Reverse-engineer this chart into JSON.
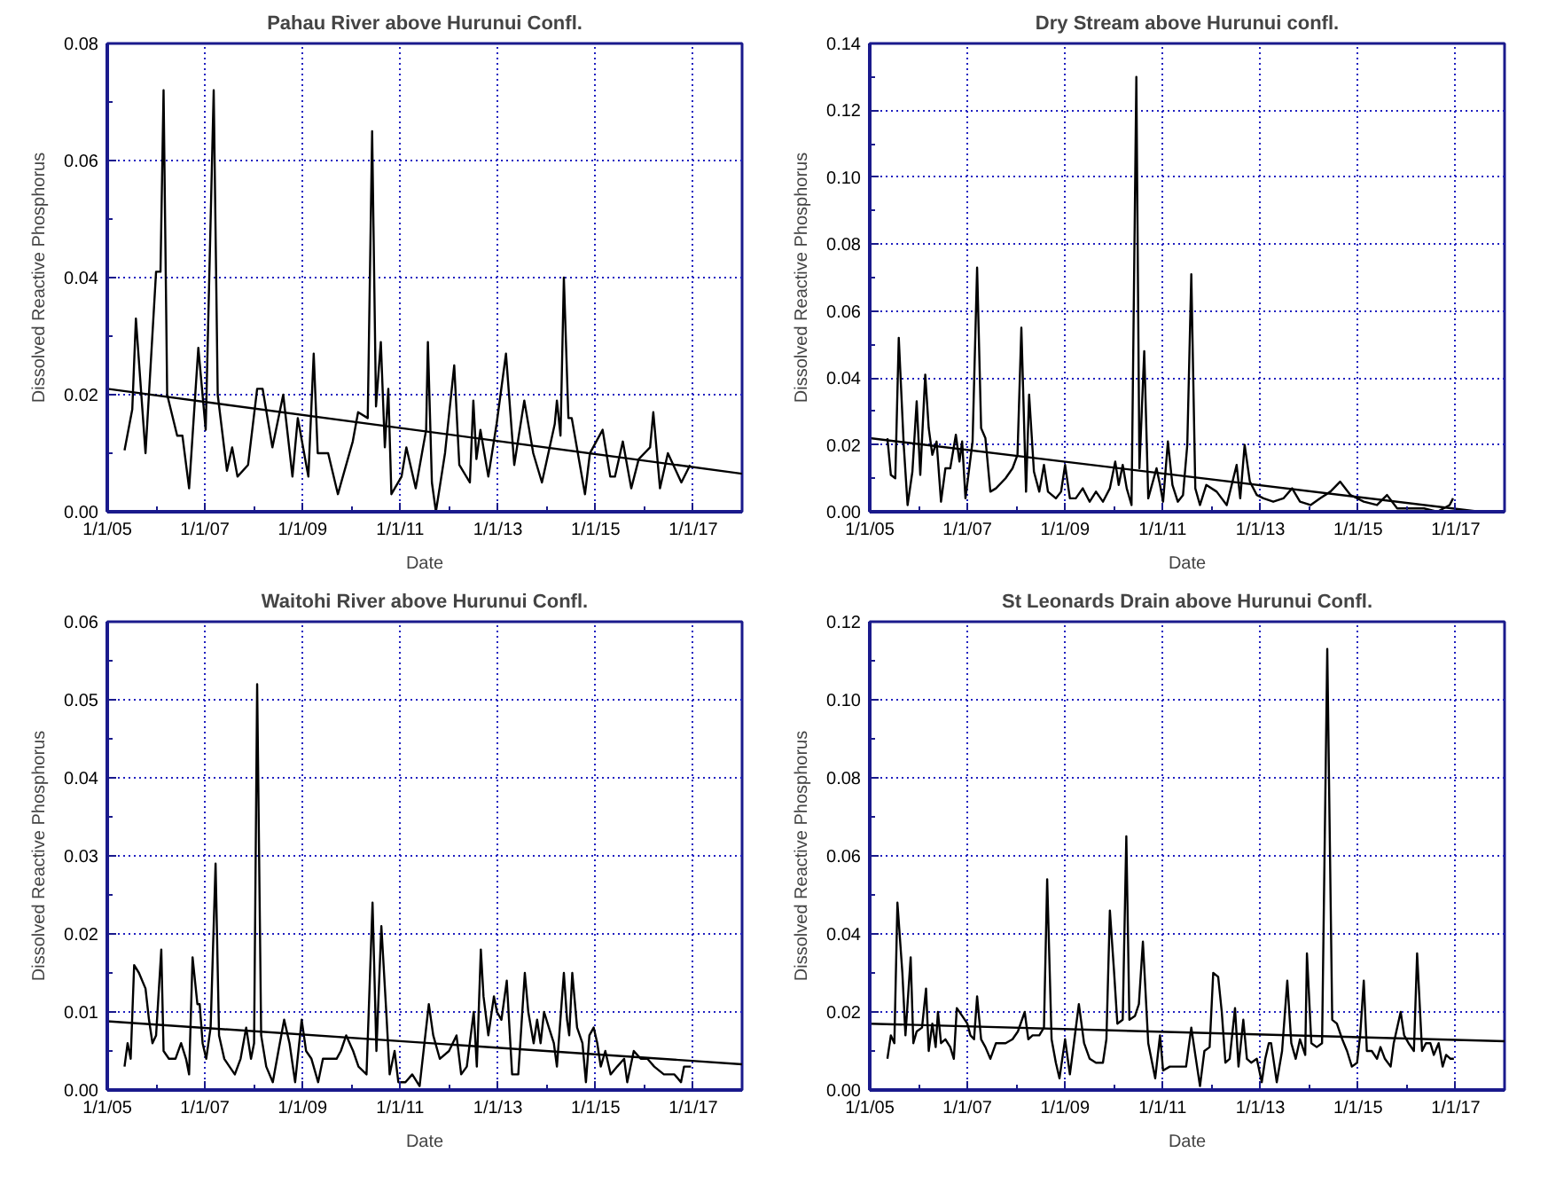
{
  "chart_data": [
    {
      "type": "line",
      "title": "Pahau River above Hurunui Confl.",
      "xlabel": "Date",
      "ylabel": "Dissolved Reactive Phosphorus",
      "xlim": [
        "2005-01-01",
        "2018-01-01"
      ],
      "xticks": [
        {
          "value": "2005-01-01",
          "label": "1/1/05"
        },
        {
          "value": "2007-01-01",
          "label": "1/1/07"
        },
        {
          "value": "2009-01-01",
          "label": "1/1/09"
        },
        {
          "value": "2011-01-01",
          "label": "1/1/11"
        },
        {
          "value": "2013-01-01",
          "label": "1/1/13"
        },
        {
          "value": "2015-01-01",
          "label": "1/1/15"
        },
        {
          "value": "2017-01-01",
          "label": "1/1/17"
        }
      ],
      "ylim": [
        0,
        0.08
      ],
      "yticks": [
        {
          "value": 0,
          "label": "0.00"
        },
        {
          "value": 0.02,
          "label": "0.02"
        },
        {
          "value": 0.04,
          "label": "0.04"
        },
        {
          "value": 0.06,
          "label": "0.06"
        },
        {
          "value": 0.08,
          "label": "0.08"
        }
      ],
      "grid": true,
      "series": [
        {
          "color": "#000000",
          "x": [
            "2005-05-10",
            "2005-07-07",
            "2005-08-03",
            "2005-10-14",
            "2006-01-01",
            "2006-02-03",
            "2006-02-26",
            "2006-03-25",
            "2006-06-08",
            "2006-07-17",
            "2006-09-05",
            "2006-11-13",
            "2007-01-07",
            "2007-03-08",
            "2007-04-07",
            "2007-06-15",
            "2007-07-24",
            "2007-09-02",
            "2007-11-20",
            "2008-01-27",
            "2008-03-08",
            "2008-05-20",
            "2008-08-09",
            "2008-10-17",
            "2008-11-26",
            "2009-02-13",
            "2009-03-25",
            "2009-04-24",
            "2009-07-11",
            "2009-09-22",
            "2010-01-11",
            "2010-02-20",
            "2010-05-03",
            "2010-06-05",
            "2010-07-04",
            "2010-08-09",
            "2010-09-08",
            "2010-10-04",
            "2010-10-27",
            "2011-01-11",
            "2011-02-16",
            "2011-04-27",
            "2011-07-14",
            "2011-07-27",
            "2011-08-26",
            "2011-09-25",
            "2011-12-02",
            "2012-02-09",
            "2012-03-18",
            "2012-06-05",
            "2012-07-01",
            "2012-07-24",
            "2012-08-23",
            "2012-10-21",
            "2012-12-22",
            "2013-03-02",
            "2013-05-03",
            "2013-07-17",
            "2013-09-22",
            "2013-11-26",
            "2014-03-02",
            "2014-03-18",
            "2014-04-14",
            "2014-05-09",
            "2014-06-12",
            "2014-07-07",
            "2014-10-14",
            "2014-11-20",
            "2015-02-23",
            "2015-04-21",
            "2015-05-26",
            "2015-07-24",
            "2015-09-25",
            "2015-11-20",
            "2016-02-13",
            "2016-03-08",
            "2016-04-27",
            "2016-06-25",
            "2016-10-04",
            "2016-12-08"
          ],
          "values": [
            0.0105,
            0.0175,
            0.033,
            0.01,
            0.041,
            0.041,
            0.072,
            0.02,
            0.013,
            0.013,
            0.004,
            0.028,
            0.014,
            0.072,
            0.02,
            0.007,
            0.011,
            0.006,
            0.008,
            0.021,
            0.021,
            0.011,
            0.02,
            0.006,
            0.016,
            0.006,
            0.027,
            0.01,
            0.01,
            0.003,
            0.012,
            0.017,
            0.016,
            0.065,
            0.018,
            0.029,
            0.011,
            0.021,
            0.003,
            0.006,
            0.011,
            0.004,
            0.014,
            0.029,
            0.005,
            0.0,
            0.01,
            0.025,
            0.008,
            0.005,
            0.019,
            0.009,
            0.014,
            0.006,
            0.015,
            0.027,
            0.008,
            0.019,
            0.01,
            0.005,
            0.015,
            0.019,
            0.013,
            0.04,
            0.016,
            0.016,
            0.003,
            0.01,
            0.014,
            0.006,
            0.006,
            0.012,
            0.004,
            0.009,
            0.011,
            0.017,
            0.004,
            0.01,
            0.005,
            0.008
          ]
        },
        {
          "type": "line",
          "color": "#000000",
          "x": [
            "2005-01-01",
            "2018-01-01"
          ],
          "values": [
            0.021,
            0.0065
          ]
        }
      ]
    },
    {
      "type": "line",
      "title": "Dry Stream above Hurunui confl.",
      "xlabel": "Date",
      "ylabel": "Dissolved Reactive Phosphorus",
      "xlim": [
        "2005-01-01",
        "2018-01-01"
      ],
      "xticks": [
        {
          "value": "2005-01-01",
          "label": "1/1/05"
        },
        {
          "value": "2007-01-01",
          "label": "1/1/07"
        },
        {
          "value": "2009-01-01",
          "label": "1/1/09"
        },
        {
          "value": "2011-01-01",
          "label": "1/1/11"
        },
        {
          "value": "2013-01-01",
          "label": "1/1/13"
        },
        {
          "value": "2015-01-01",
          "label": "1/1/15"
        },
        {
          "value": "2017-01-01",
          "label": "1/1/17"
        }
      ],
      "ylim": [
        0,
        0.14
      ],
      "yticks": [
        {
          "value": 0,
          "label": "0.00"
        },
        {
          "value": 0.02,
          "label": "0.02"
        },
        {
          "value": 0.04,
          "label": "0.04"
        },
        {
          "value": 0.06,
          "label": "0.06"
        },
        {
          "value": 0.08,
          "label": "0.08"
        },
        {
          "value": 0.1,
          "label": "0.10"
        },
        {
          "value": 0.12,
          "label": "0.12"
        },
        {
          "value": 0.14,
          "label": "0.14"
        }
      ],
      "grid": true,
      "series": [
        {
          "color": "#000000",
          "x": [
            "2005-05-13",
            "2005-06-08",
            "2005-07-11",
            "2005-08-06",
            "2005-09-12",
            "2005-10-11",
            "2005-11-16",
            "2005-12-18",
            "2006-01-14",
            "2006-02-20",
            "2006-03-18",
            "2006-04-14",
            "2006-05-16",
            "2006-06-18",
            "2006-07-21",
            "2006-08-26",
            "2006-10-07",
            "2006-11-03",
            "2006-11-23",
            "2006-12-18",
            "2007-02-09",
            "2007-03-15",
            "2007-04-14",
            "2007-05-16",
            "2007-06-22",
            "2007-08-03",
            "2007-10-14",
            "2007-12-05",
            "2008-01-11",
            "2008-02-09",
            "2008-03-15",
            "2008-04-07",
            "2008-05-13",
            "2008-06-22",
            "2008-07-27",
            "2008-08-26",
            "2008-10-24",
            "2008-12-02",
            "2009-01-01",
            "2009-02-06",
            "2009-03-22",
            "2009-05-13",
            "2009-07-04",
            "2009-08-20",
            "2009-10-11",
            "2009-12-02",
            "2010-01-11",
            "2010-02-06",
            "2010-03-08",
            "2010-04-07",
            "2010-05-13",
            "2010-06-18",
            "2010-07-11",
            "2010-08-16",
            "2010-09-15",
            "2010-11-16",
            "2010-12-12",
            "2011-01-04",
            "2011-02-09",
            "2011-03-15",
            "2011-04-24",
            "2011-06-02",
            "2011-07-04",
            "2011-08-03",
            "2011-09-02",
            "2011-10-07",
            "2011-11-23",
            "2012-02-09",
            "2012-04-24",
            "2012-07-07",
            "2012-08-03",
            "2012-09-05",
            "2012-10-14",
            "2012-12-05",
            "2013-01-24",
            "2013-04-07",
            "2013-06-22",
            "2013-08-26",
            "2013-10-24",
            "2014-01-11",
            "2014-03-22",
            "2014-06-08",
            "2014-08-20",
            "2014-11-06",
            "2015-02-13",
            "2015-05-23",
            "2015-08-06",
            "2015-10-21",
            "2016-01-27",
            "2016-05-09",
            "2016-08-16",
            "2016-11-16",
            "2016-12-12"
          ],
          "values": [
            0.022,
            0.011,
            0.01,
            0.052,
            0.02,
            0.002,
            0.012,
            0.033,
            0.011,
            0.041,
            0.025,
            0.017,
            0.021,
            0.003,
            0.013,
            0.013,
            0.023,
            0.015,
            0.021,
            0.004,
            0.021,
            0.073,
            0.025,
            0.022,
            0.006,
            0.007,
            0.01,
            0.013,
            0.017,
            0.055,
            0.006,
            0.035,
            0.012,
            0.006,
            0.014,
            0.006,
            0.004,
            0.006,
            0.014,
            0.004,
            0.004,
            0.007,
            0.003,
            0.006,
            0.003,
            0.007,
            0.015,
            0.008,
            0.014,
            0.007,
            0.002,
            0.13,
            0.013,
            0.048,
            0.004,
            0.013,
            0.008,
            0.003,
            0.021,
            0.008,
            0.003,
            0.005,
            0.02,
            0.071,
            0.007,
            0.002,
            0.008,
            0.006,
            0.002,
            0.014,
            0.004,
            0.02,
            0.009,
            0.005,
            0.004,
            0.003,
            0.004,
            0.007,
            0.003,
            0.002,
            0.004,
            0.006,
            0.009,
            0.005,
            0.003,
            0.002,
            0.005,
            0.001,
            0.001,
            0.001,
            0.0,
            0.002,
            0.004
          ]
        },
        {
          "type": "line",
          "color": "#000000",
          "x": [
            "2005-01-01",
            "2017-07-01"
          ],
          "values": [
            0.022,
            0.0
          ]
        }
      ]
    },
    {
      "type": "line",
      "title": "Waitohi River above Hurunui Confl.",
      "xlabel": "Date",
      "ylabel": "Dissolved Reactive Phosphorus",
      "xlim": [
        "2005-01-01",
        "2018-01-01"
      ],
      "xticks": [
        {
          "value": "2005-01-01",
          "label": "1/1/05"
        },
        {
          "value": "2007-01-01",
          "label": "1/1/07"
        },
        {
          "value": "2009-01-01",
          "label": "1/1/09"
        },
        {
          "value": "2011-01-01",
          "label": "1/1/11"
        },
        {
          "value": "2013-01-01",
          "label": "1/1/13"
        },
        {
          "value": "2015-01-01",
          "label": "1/1/15"
        },
        {
          "value": "2017-01-01",
          "label": "1/1/17"
        }
      ],
      "ylim": [
        0,
        0.06
      ],
      "yticks": [
        {
          "value": 0,
          "label": "0.00"
        },
        {
          "value": 0.01,
          "label": "0.01"
        },
        {
          "value": 0.02,
          "label": "0.02"
        },
        {
          "value": 0.03,
          "label": "0.03"
        },
        {
          "value": 0.04,
          "label": "0.04"
        },
        {
          "value": 0.05,
          "label": "0.05"
        },
        {
          "value": 0.06,
          "label": "0.06"
        }
      ],
      "grid": true,
      "series": [
        {
          "color": "#000000",
          "x": [
            "2005-05-10",
            "2005-06-02",
            "2005-06-25",
            "2005-07-21",
            "2005-08-26",
            "2005-10-14",
            "2005-11-09",
            "2005-12-05",
            "2006-01-01",
            "2006-02-09",
            "2006-02-26",
            "2006-04-07",
            "2006-05-26",
            "2006-07-07",
            "2006-08-13",
            "2006-09-05",
            "2006-10-01",
            "2006-11-06",
            "2006-11-23",
            "2006-12-15",
            "2007-01-11",
            "2007-02-13",
            "2007-03-22",
            "2007-04-17",
            "2007-05-26",
            "2007-07-04",
            "2007-08-13",
            "2007-09-25",
            "2007-11-06",
            "2007-12-12",
            "2008-01-04",
            "2008-01-27",
            "2008-02-26",
            "2008-04-04",
            "2008-05-23",
            "2008-07-04",
            "2008-08-16",
            "2008-09-25",
            "2008-11-06",
            "2008-12-25",
            "2009-01-27",
            "2009-03-08",
            "2009-04-27",
            "2009-06-02",
            "2009-07-21",
            "2009-09-12",
            "2009-10-14",
            "2009-11-23",
            "2010-01-14",
            "2010-02-23",
            "2010-04-24",
            "2010-06-08",
            "2010-07-07",
            "2010-08-13",
            "2010-09-22",
            "2010-10-14",
            "2010-11-20",
            "2010-12-18",
            "2011-02-09",
            "2011-04-01",
            "2011-05-26",
            "2011-08-03",
            "2011-09-05",
            "2011-10-24",
            "2012-01-01",
            "2012-02-26",
            "2012-04-01",
            "2012-05-13",
            "2012-07-04",
            "2012-07-27",
            "2012-08-26",
            "2012-09-15",
            "2012-10-21",
            "2012-12-02",
            "2012-12-25",
            "2013-01-27",
            "2013-03-08",
            "2013-04-17",
            "2013-06-02",
            "2013-07-21",
            "2013-08-16",
            "2013-09-25",
            "2013-10-21",
            "2013-11-16",
            "2013-12-12",
            "2014-01-17",
            "2014-02-23",
            "2014-03-18",
            "2014-05-09",
            "2014-06-02",
            "2014-06-18",
            "2014-07-11",
            "2014-08-16",
            "2014-09-25",
            "2014-10-21",
            "2014-11-16",
            "2014-12-18",
            "2015-01-14",
            "2015-02-09",
            "2015-03-15",
            "2015-04-24",
            "2015-06-12",
            "2015-08-03",
            "2015-08-26",
            "2015-10-14",
            "2015-12-05",
            "2016-01-24",
            "2016-03-15",
            "2016-05-26",
            "2016-08-13",
            "2016-10-01",
            "2016-10-24",
            "2016-12-15"
          ],
          "values": [
            0.003,
            0.006,
            0.004,
            0.016,
            0.015,
            0.013,
            0.009,
            0.006,
            0.007,
            0.018,
            0.005,
            0.004,
            0.004,
            0.006,
            0.004,
            0.002,
            0.017,
            0.011,
            0.011,
            0.006,
            0.004,
            0.008,
            0.029,
            0.007,
            0.004,
            0.003,
            0.002,
            0.004,
            0.008,
            0.004,
            0.006,
            0.052,
            0.007,
            0.003,
            0.001,
            0.005,
            0.009,
            0.006,
            0.001,
            0.009,
            0.005,
            0.004,
            0.001,
            0.004,
            0.004,
            0.004,
            0.005,
            0.007,
            0.005,
            0.003,
            0.002,
            0.024,
            0.005,
            0.021,
            0.009,
            0.002,
            0.005,
            0.001,
            0.001,
            0.002,
            0.0005,
            0.011,
            0.007,
            0.004,
            0.005,
            0.007,
            0.002,
            0.003,
            0.01,
            0.003,
            0.018,
            0.012,
            0.007,
            0.012,
            0.01,
            0.009,
            0.014,
            0.002,
            0.002,
            0.015,
            0.01,
            0.006,
            0.009,
            0.006,
            0.01,
            0.008,
            0.006,
            0.003,
            0.015,
            0.009,
            0.007,
            0.015,
            0.008,
            0.006,
            0.001,
            0.007,
            0.008,
            0.006,
            0.003,
            0.005,
            0.002,
            0.003,
            0.004,
            0.001,
            0.005,
            0.004,
            0.004,
            0.003,
            0.002,
            0.002,
            0.001,
            0.003,
            0.003
          ]
        },
        {
          "type": "line",
          "color": "#000000",
          "x": [
            "2005-01-01",
            "2018-01-01"
          ],
          "values": [
            0.0088,
            0.0033
          ]
        }
      ]
    },
    {
      "type": "line",
      "title": "St Leonards Drain above Hurunui Confl.",
      "xlabel": "Date",
      "ylabel": "Dissolved Reactive Phosphorus",
      "xlim": [
        "2005-01-01",
        "2018-01-01"
      ],
      "xticks": [
        {
          "value": "2005-01-01",
          "label": "1/1/05"
        },
        {
          "value": "2007-01-01",
          "label": "1/1/07"
        },
        {
          "value": "2009-01-01",
          "label": "1/1/09"
        },
        {
          "value": "2011-01-01",
          "label": "1/1/11"
        },
        {
          "value": "2013-01-01",
          "label": "1/1/13"
        },
        {
          "value": "2015-01-01",
          "label": "1/1/15"
        },
        {
          "value": "2017-01-01",
          "label": "1/1/17"
        }
      ],
      "ylim": [
        0,
        0.12
      ],
      "yticks": [
        {
          "value": 0,
          "label": "0.00"
        },
        {
          "value": 0.02,
          "label": "0.02"
        },
        {
          "value": 0.04,
          "label": "0.04"
        },
        {
          "value": 0.06,
          "label": "0.06"
        },
        {
          "value": 0.08,
          "label": "0.08"
        },
        {
          "value": 0.1,
          "label": "0.10"
        },
        {
          "value": 0.12,
          "label": "0.12"
        }
      ],
      "grid": true,
      "series": [
        {
          "color": "#000000",
          "x": [
            "2005-05-13",
            "2005-06-08",
            "2005-07-04",
            "2005-07-27",
            "2005-09-02",
            "2005-09-25",
            "2005-11-03",
            "2005-11-23",
            "2005-12-18",
            "2006-01-27",
            "2006-02-26",
            "2006-03-18",
            "2006-04-14",
            "2006-05-09",
            "2006-05-26",
            "2006-06-18",
            "2006-07-21",
            "2006-08-26",
            "2006-09-22",
            "2006-10-14",
            "2006-11-23",
            "2007-01-01",
            "2007-01-24",
            "2007-02-20",
            "2007-03-15",
            "2007-04-14",
            "2007-05-16",
            "2007-06-22",
            "2007-08-03",
            "2007-10-14",
            "2007-12-05",
            "2008-01-14",
            "2008-03-05",
            "2008-04-01",
            "2008-05-03",
            "2008-06-22",
            "2008-07-27",
            "2008-08-20",
            "2008-09-22",
            "2008-10-24",
            "2008-11-20",
            "2009-01-01",
            "2009-02-06",
            "2009-03-08",
            "2009-04-14",
            "2009-05-23",
            "2009-07-04",
            "2009-08-20",
            "2009-10-11",
            "2009-11-06",
            "2009-12-02",
            "2010-01-01",
            "2010-01-27",
            "2010-03-08",
            "2010-04-04",
            "2010-04-27",
            "2010-06-08",
            "2010-07-07",
            "2010-08-06",
            "2010-09-15",
            "2010-11-06",
            "2010-12-12",
            "2011-01-04",
            "2011-02-23",
            "2011-05-09",
            "2011-06-25",
            "2011-08-03",
            "2011-09-02",
            "2011-10-07",
            "2011-11-09",
            "2011-12-18",
            "2012-01-14",
            "2012-02-20",
            "2012-03-18",
            "2012-04-14",
            "2012-05-16",
            "2012-06-25",
            "2012-07-21",
            "2012-08-26",
            "2012-09-22",
            "2012-10-24",
            "2012-12-05",
            "2013-01-11",
            "2013-02-06",
            "2013-03-05",
            "2013-03-22",
            "2013-05-03",
            "2013-06-12",
            "2013-07-21",
            "2013-08-20",
            "2013-09-22",
            "2013-10-24",
            "2013-12-02",
            "2013-12-15",
            "2014-01-17",
            "2014-02-26",
            "2014-04-07",
            "2014-05-16",
            "2014-06-22",
            "2014-07-27",
            "2014-09-05",
            "2014-10-11",
            "2014-11-16",
            "2014-12-25",
            "2015-01-17",
            "2015-02-13",
            "2015-03-08",
            "2015-04-14",
            "2015-05-23",
            "2015-06-18",
            "2015-07-21",
            "2015-09-02",
            "2015-09-25",
            "2015-11-16",
            "2015-12-12",
            "2016-01-14",
            "2016-02-23",
            "2016-03-18",
            "2016-04-24",
            "2016-05-23",
            "2016-06-25",
            "2016-07-21",
            "2016-08-26",
            "2016-09-25",
            "2016-10-21",
            "2016-11-23",
            "2016-12-18"
          ],
          "values": [
            0.008,
            0.014,
            0.012,
            0.048,
            0.03,
            0.014,
            0.034,
            0.012,
            0.015,
            0.016,
            0.026,
            0.01,
            0.017,
            0.011,
            0.02,
            0.012,
            0.013,
            0.011,
            0.008,
            0.021,
            0.019,
            0.017,
            0.014,
            0.013,
            0.024,
            0.013,
            0.011,
            0.008,
            0.012,
            0.012,
            0.013,
            0.015,
            0.02,
            0.013,
            0.014,
            0.014,
            0.016,
            0.054,
            0.013,
            0.007,
            0.003,
            0.013,
            0.004,
            0.012,
            0.022,
            0.012,
            0.008,
            0.007,
            0.007,
            0.013,
            0.046,
            0.031,
            0.017,
            0.018,
            0.065,
            0.018,
            0.019,
            0.022,
            0.038,
            0.012,
            0.003,
            0.014,
            0.005,
            0.006,
            0.006,
            0.006,
            0.016,
            0.009,
            0.001,
            0.01,
            0.011,
            0.03,
            0.029,
            0.02,
            0.007,
            0.008,
            0.021,
            0.006,
            0.018,
            0.008,
            0.007,
            0.008,
            0.002,
            0.008,
            0.012,
            0.012,
            0.002,
            0.01,
            0.028,
            0.012,
            0.008,
            0.013,
            0.009,
            0.035,
            0.012,
            0.011,
            0.012,
            0.113,
            0.018,
            0.017,
            0.013,
            0.01,
            0.006,
            0.007,
            0.014,
            0.028,
            0.01,
            0.01,
            0.008,
            0.011,
            0.008,
            0.006,
            0.012,
            0.02,
            0.014,
            0.012,
            0.01,
            0.035,
            0.01,
            0.012,
            0.012,
            0.009,
            0.012,
            0.006,
            0.009,
            0.008,
            0.008
          ]
        },
        {
          "type": "line",
          "color": "#000000",
          "x": [
            "2005-01-01",
            "2018-01-01"
          ],
          "values": [
            0.017,
            0.0125
          ]
        }
      ]
    }
  ]
}
